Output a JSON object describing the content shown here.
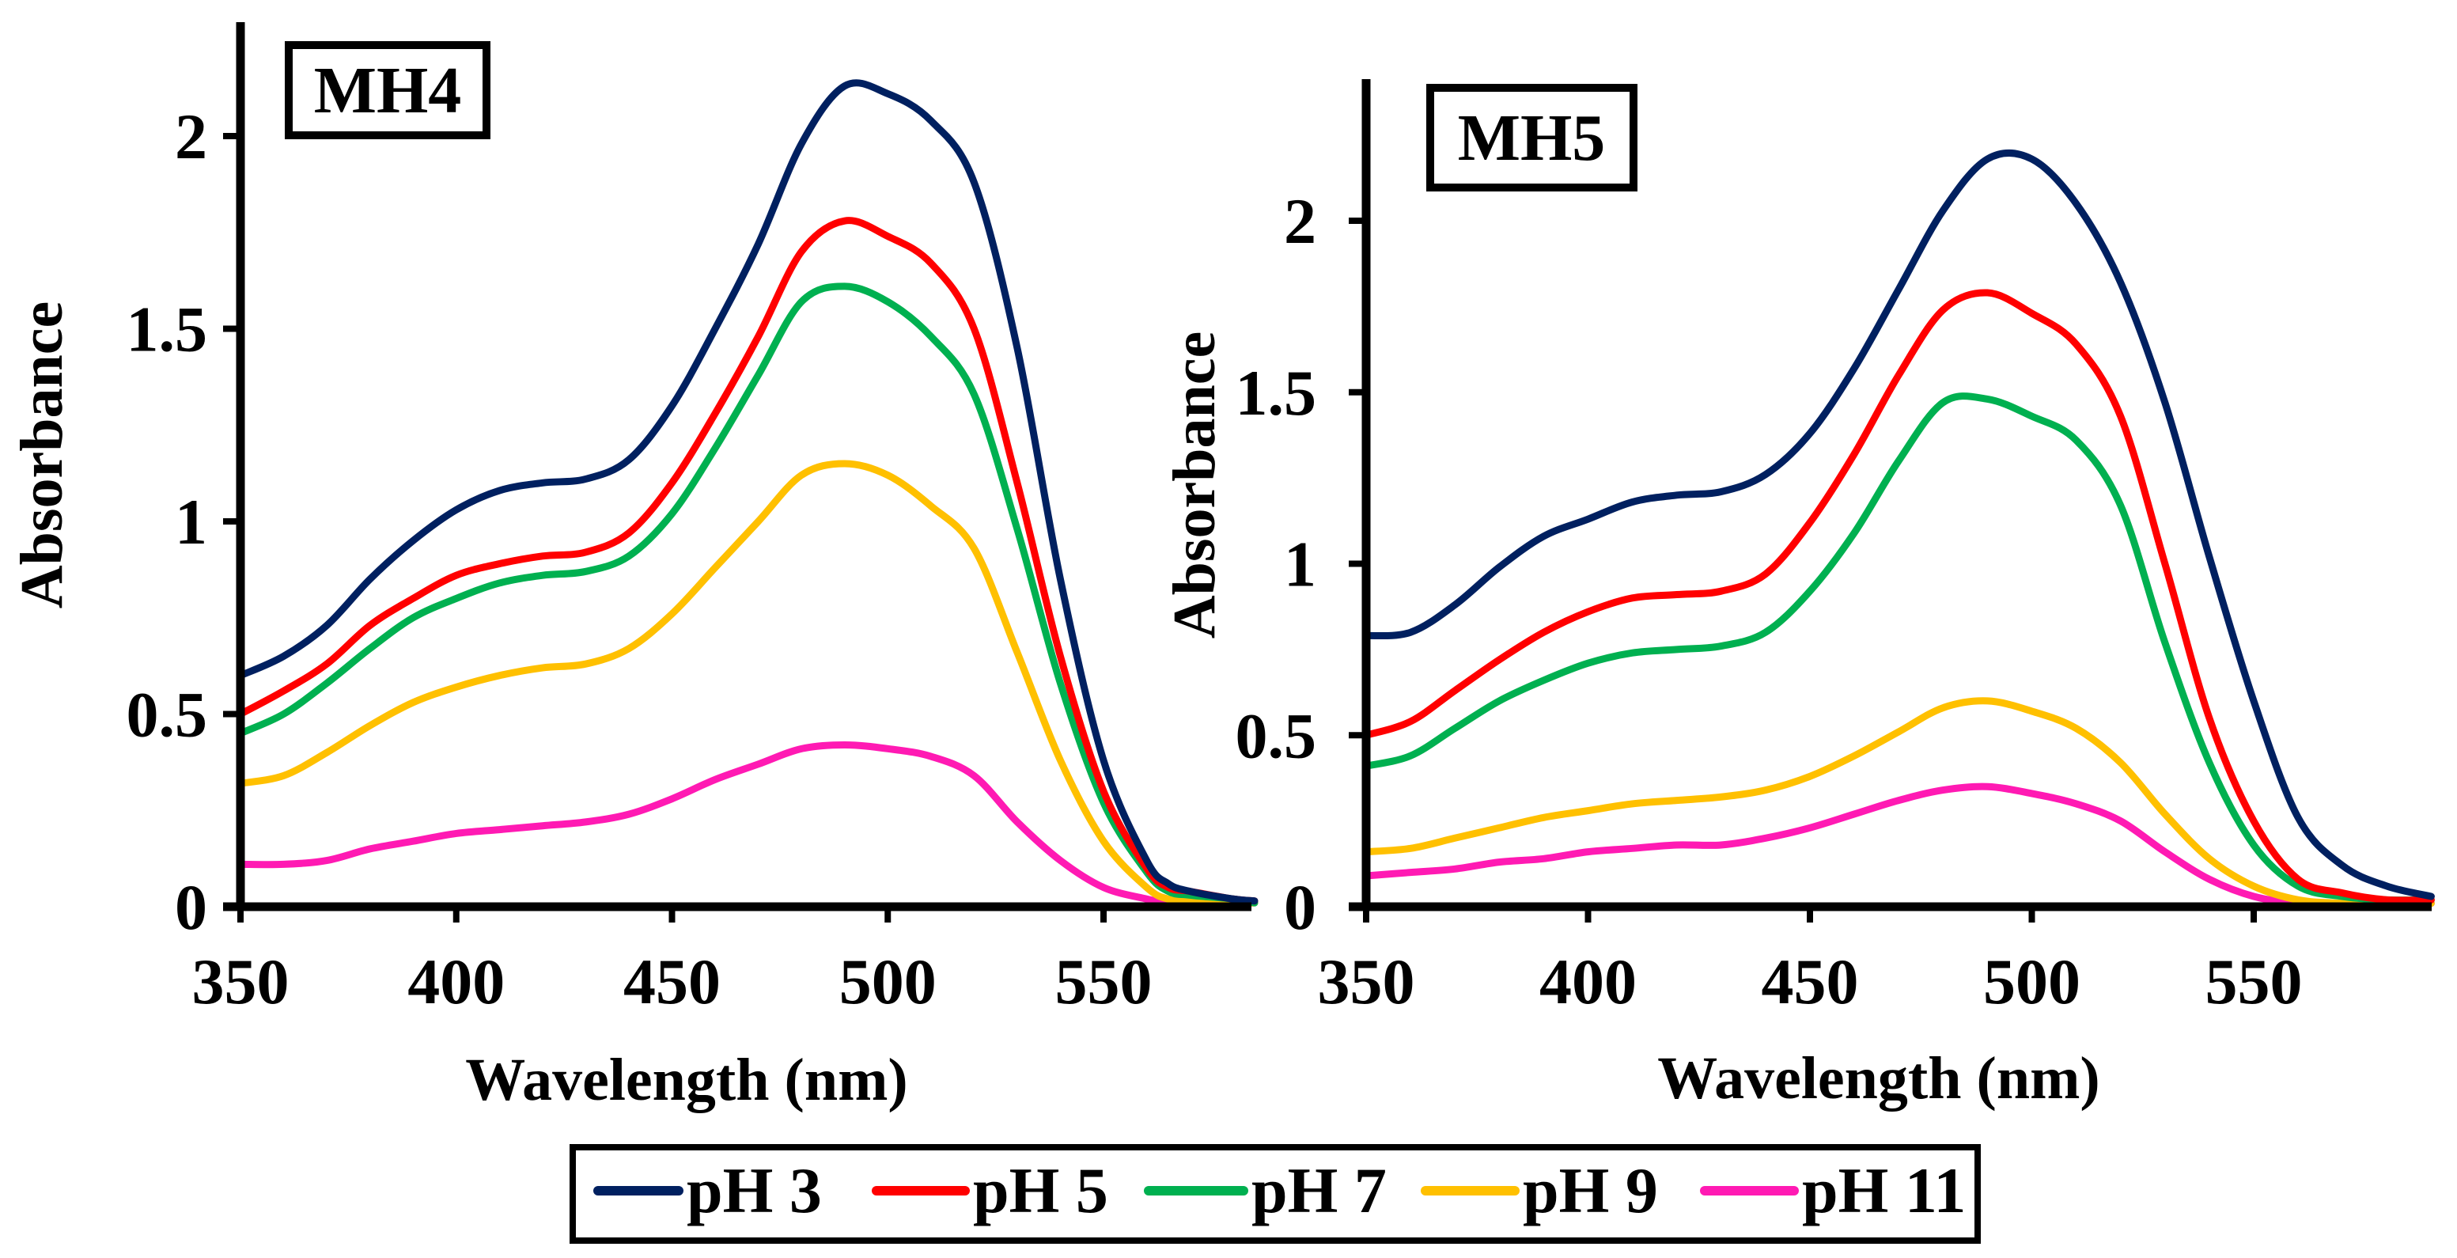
{
  "chart_data": [
    {
      "type": "line",
      "title": "MH4",
      "xlabel": "Wavelength (nm)",
      "ylabel": "Absorbance",
      "xlim": [
        350,
        585
      ],
      "ylim": [
        0,
        2.25
      ],
      "xticks": [
        "350",
        "400",
        "450",
        "500",
        "550"
      ],
      "yticks": [
        "0",
        "0.5",
        "1",
        "1.5",
        "2"
      ],
      "grid": false,
      "x": [
        350,
        360,
        370,
        380,
        390,
        400,
        410,
        420,
        430,
        440,
        450,
        460,
        470,
        480,
        490,
        500,
        510,
        520,
        530,
        540,
        550,
        560,
        565,
        570,
        580,
        585
      ],
      "series": [
        {
          "name": "pH 3",
          "color": "#002060",
          "values": [
            0.6,
            0.65,
            0.73,
            0.85,
            0.95,
            1.03,
            1.08,
            1.1,
            1.11,
            1.16,
            1.3,
            1.5,
            1.72,
            1.98,
            2.13,
            2.11,
            2.04,
            1.88,
            1.45,
            0.85,
            0.38,
            0.12,
            0.06,
            0.04,
            0.02,
            0.015
          ]
        },
        {
          "name": "pH 5",
          "color": "#FF0000",
          "values": [
            0.5,
            0.56,
            0.63,
            0.73,
            0.8,
            0.86,
            0.89,
            0.91,
            0.92,
            0.97,
            1.1,
            1.28,
            1.48,
            1.7,
            1.78,
            1.74,
            1.67,
            1.5,
            1.1,
            0.65,
            0.3,
            0.1,
            0.05,
            0.04,
            0.02,
            0.015
          ]
        },
        {
          "name": "pH 7",
          "color": "#00B050",
          "values": [
            0.45,
            0.5,
            0.58,
            0.67,
            0.75,
            0.8,
            0.84,
            0.86,
            0.87,
            0.91,
            1.02,
            1.19,
            1.38,
            1.57,
            1.61,
            1.57,
            1.48,
            1.33,
            0.98,
            0.58,
            0.27,
            0.09,
            0.04,
            0.03,
            0.02,
            0.01
          ]
        },
        {
          "name": "pH 9",
          "color": "#FFC000",
          "values": [
            0.32,
            0.34,
            0.4,
            0.47,
            0.53,
            0.57,
            0.6,
            0.62,
            0.63,
            0.67,
            0.76,
            0.88,
            1.0,
            1.12,
            1.15,
            1.12,
            1.04,
            0.93,
            0.66,
            0.38,
            0.17,
            0.05,
            0.02,
            0.02,
            0.01,
            0.01
          ]
        },
        {
          "name": "pH 11",
          "color": "#FF1AB3",
          "values": [
            0.11,
            0.11,
            0.12,
            0.15,
            0.17,
            0.19,
            0.2,
            0.21,
            0.22,
            0.24,
            0.28,
            0.33,
            0.37,
            0.41,
            0.42,
            0.41,
            0.39,
            0.34,
            0.22,
            0.12,
            0.05,
            0.02,
            0.01,
            0.01,
            0.01,
            0.01
          ]
        }
      ]
    },
    {
      "type": "line",
      "title": "MH5",
      "xlabel": "Wavelength (nm)",
      "ylabel": "Absorbance",
      "xlim": [
        350,
        590
      ],
      "ylim": [
        0,
        2.4
      ],
      "xticks": [
        "350",
        "400",
        "450",
        "500",
        "550"
      ],
      "yticks": [
        "0",
        "0.5",
        "1",
        "1.5",
        "2"
      ],
      "grid": false,
      "x": [
        350,
        360,
        370,
        380,
        390,
        400,
        410,
        420,
        430,
        440,
        450,
        460,
        470,
        480,
        490,
        500,
        510,
        520,
        530,
        540,
        550,
        560,
        570,
        580,
        590
      ],
      "series": [
        {
          "name": "pH 3",
          "color": "#002060",
          "values": [
            0.79,
            0.8,
            0.88,
            0.99,
            1.08,
            1.13,
            1.18,
            1.2,
            1.21,
            1.26,
            1.38,
            1.57,
            1.8,
            2.03,
            2.18,
            2.18,
            2.05,
            1.82,
            1.47,
            1.02,
            0.6,
            0.26,
            0.12,
            0.06,
            0.03
          ]
        },
        {
          "name": "pH 5",
          "color": "#FF0000",
          "values": [
            0.5,
            0.54,
            0.63,
            0.72,
            0.8,
            0.86,
            0.9,
            0.91,
            0.92,
            0.97,
            1.12,
            1.32,
            1.55,
            1.74,
            1.79,
            1.73,
            1.64,
            1.43,
            1.0,
            0.55,
            0.25,
            0.08,
            0.04,
            0.02,
            0.02
          ]
        },
        {
          "name": "pH 7",
          "color": "#00B050",
          "values": [
            0.41,
            0.44,
            0.52,
            0.6,
            0.66,
            0.71,
            0.74,
            0.75,
            0.76,
            0.8,
            0.92,
            1.09,
            1.3,
            1.47,
            1.48,
            1.43,
            1.36,
            1.17,
            0.77,
            0.42,
            0.18,
            0.06,
            0.03,
            0.02,
            0.02
          ]
        },
        {
          "name": "pH 9",
          "color": "#FFC000",
          "values": [
            0.16,
            0.17,
            0.2,
            0.23,
            0.26,
            0.28,
            0.3,
            0.31,
            0.32,
            0.34,
            0.38,
            0.44,
            0.51,
            0.58,
            0.6,
            0.57,
            0.52,
            0.42,
            0.27,
            0.14,
            0.06,
            0.02,
            0.01,
            0.01,
            0.01
          ]
        },
        {
          "name": "pH 11",
          "color": "#FF1AB3",
          "values": [
            0.09,
            0.1,
            0.11,
            0.13,
            0.14,
            0.16,
            0.17,
            0.18,
            0.18,
            0.2,
            0.23,
            0.27,
            0.31,
            0.34,
            0.35,
            0.33,
            0.3,
            0.25,
            0.16,
            0.08,
            0.03,
            0.01,
            0.01,
            0.01,
            0.01
          ]
        }
      ]
    }
  ],
  "legend": {
    "placement": "bottom-center",
    "items": [
      {
        "label": "pH 3",
        "color": "#002060"
      },
      {
        "label": "pH 5",
        "color": "#FF0000"
      },
      {
        "label": "pH 7",
        "color": "#00B050"
      },
      {
        "label": "pH 9",
        "color": "#FFC000"
      },
      {
        "label": "pH 11",
        "color": "#FF1AB3"
      }
    ]
  }
}
